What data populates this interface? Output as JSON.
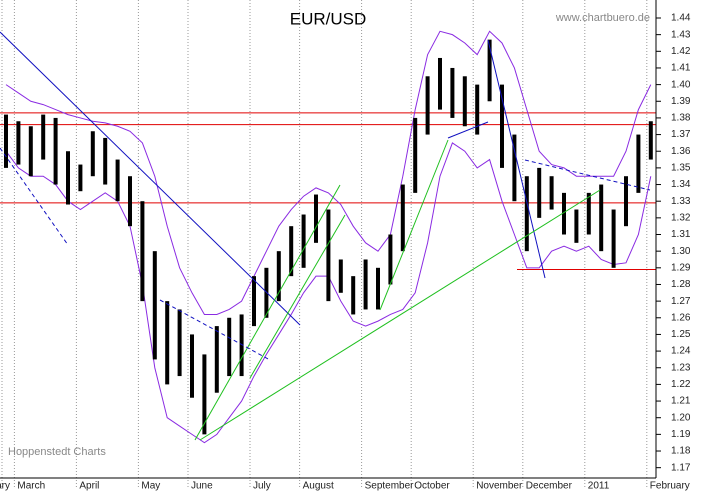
{
  "chart_data": {
    "type": "ohlc",
    "title": "EUR/USD",
    "source": "www.chartbuero.de",
    "credit": "Hoppenstedt Charts",
    "categories": [
      "February",
      "March",
      null,
      null,
      null,
      null,
      "April",
      null,
      null,
      null,
      null,
      "May",
      null,
      null,
      null,
      "June",
      null,
      null,
      null,
      null,
      "July",
      null,
      null,
      null,
      "August",
      null,
      null,
      null,
      null,
      "September",
      null,
      null,
      null,
      "October",
      null,
      null,
      null,
      null,
      "November",
      null,
      null,
      null,
      "December",
      null,
      null,
      null,
      null,
      "2011",
      null,
      null,
      null,
      null,
      "February"
    ],
    "high": [
      1.382,
      1.378,
      1.375,
      1.382,
      1.38,
      1.36,
      1.352,
      1.372,
      1.368,
      1.355,
      1.345,
      1.33,
      1.3,
      1.27,
      1.265,
      1.25,
      1.238,
      1.255,
      1.26,
      1.262,
      1.285,
      1.29,
      1.3,
      1.315,
      1.322,
      1.334,
      1.325,
      1.295,
      1.285,
      1.295,
      1.29,
      1.31,
      1.34,
      1.38,
      1.405,
      1.416,
      1.41,
      1.405,
      1.4,
      1.427,
      1.4,
      1.37,
      1.345,
      1.35,
      1.345,
      1.335,
      1.325,
      1.335,
      1.34,
      1.325,
      1.345,
      1.37,
      1.378
    ],
    "low": [
      1.35,
      1.352,
      1.345,
      1.355,
      1.34,
      1.328,
      1.336,
      1.345,
      1.34,
      1.33,
      1.315,
      1.27,
      1.235,
      1.22,
      1.225,
      1.212,
      1.19,
      1.215,
      1.225,
      1.225,
      1.255,
      1.26,
      1.27,
      1.285,
      1.29,
      1.305,
      1.27,
      1.275,
      1.262,
      1.265,
      1.265,
      1.28,
      1.3,
      1.335,
      1.37,
      1.385,
      1.38,
      1.375,
      1.37,
      1.39,
      1.35,
      1.33,
      1.3,
      1.32,
      1.325,
      1.31,
      1.305,
      1.31,
      1.3,
      1.29,
      1.315,
      1.335,
      1.355
    ],
    "upper_band": [
      1.4,
      1.395,
      1.39,
      1.388,
      1.385,
      1.382,
      1.38,
      1.378,
      1.377,
      1.375,
      1.372,
      1.365,
      1.345,
      1.315,
      1.29,
      1.275,
      1.262,
      1.262,
      1.265,
      1.27,
      1.285,
      1.3,
      1.315,
      1.325,
      1.333,
      1.338,
      1.335,
      1.328,
      1.315,
      1.305,
      1.3,
      1.31,
      1.345,
      1.385,
      1.418,
      1.432,
      1.43,
      1.425,
      1.418,
      1.432,
      1.425,
      1.41,
      1.385,
      1.36,
      1.352,
      1.35,
      1.345,
      1.345,
      1.345,
      1.345,
      1.36,
      1.385,
      1.4
    ],
    "lower_band": [
      1.36,
      1.35,
      1.345,
      1.345,
      1.34,
      1.33,
      1.325,
      1.33,
      1.335,
      1.33,
      1.315,
      1.28,
      1.23,
      1.2,
      1.195,
      1.19,
      1.185,
      1.19,
      1.2,
      1.21,
      1.225,
      1.238,
      1.25,
      1.262,
      1.275,
      1.285,
      1.285,
      1.27,
      1.258,
      1.255,
      1.258,
      1.262,
      1.265,
      1.275,
      1.305,
      1.345,
      1.365,
      1.36,
      1.35,
      1.355,
      1.33,
      1.31,
      1.29,
      1.29,
      1.3,
      1.303,
      1.3,
      1.303,
      1.295,
      1.292,
      1.293,
      1.31,
      1.345
    ],
    "levels": [
      1.383,
      1.376,
      1.329,
      1.289
    ],
    "color": "#000000",
    "band_color": "#8a2be2",
    "level_color": "#e00000",
    "ylim": [
      1.165,
      1.446
    ],
    "yticks": [
      1.17,
      1.18,
      1.19,
      {
        "value": 1.2,
        "label": "1.20"
      },
      1.21,
      1.22,
      1.23,
      1.24,
      1.25,
      1.26,
      1.27,
      1.28,
      1.29,
      {
        "value": 1.3,
        "label": "1.30"
      },
      1.31,
      1.32,
      1.33,
      1.34,
      1.35,
      1.36,
      1.37,
      1.38,
      1.39,
      {
        "value": 1.4,
        "label": "1.40"
      },
      1.41,
      1.42,
      1.43,
      1.44
    ],
    "y_axis_side": "right"
  }
}
